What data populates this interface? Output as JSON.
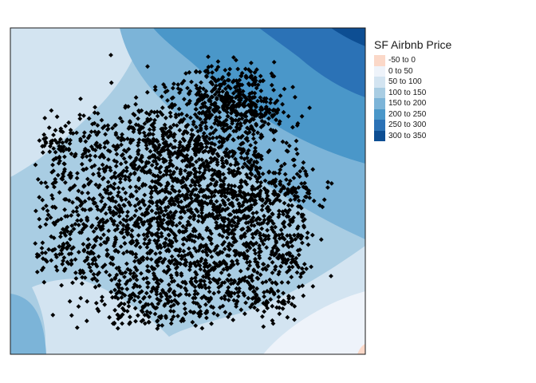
{
  "chart_data": {
    "type": "map",
    "legend": {
      "title": "SF Airbnb Price",
      "placement": "right",
      "items": [
        {
          "label": "-50 to 0",
          "color": "#fbd8c8"
        },
        {
          "label": "0 to 50",
          "color": "#eef3fa"
        },
        {
          "label": "50 to 100",
          "color": "#d3e4f1"
        },
        {
          "label": "100 to 150",
          "color": "#a9cde3"
        },
        {
          "label": "150 to 200",
          "color": "#7cb4d8"
        },
        {
          "label": "200 to 250",
          "color": "#4a97c9"
        },
        {
          "label": "250 to 300",
          "color": "#2b72b6"
        },
        {
          "label": "300 to 350",
          "color": "#0d4e93"
        }
      ]
    },
    "layers": [
      {
        "name": "interpolated price surface",
        "kind": "filled-contour"
      },
      {
        "name": "listings",
        "kind": "points",
        "marker": "black diamond"
      }
    ],
    "grid": false
  }
}
